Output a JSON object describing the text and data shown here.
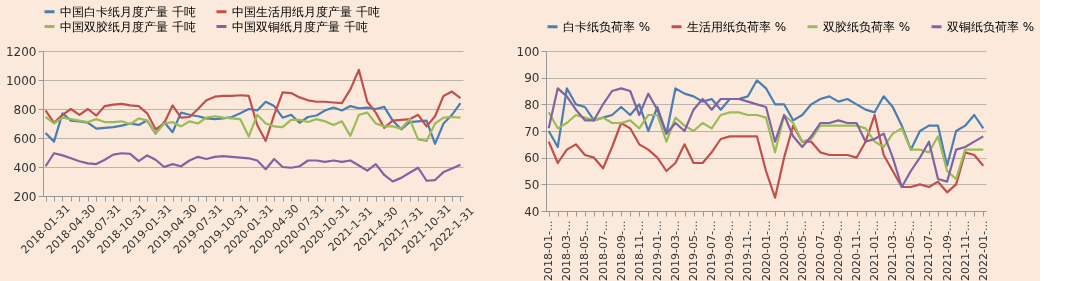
{
  "chart_data": [
    {
      "type": "line",
      "categories": [
        "2018-01-31",
        null,
        null,
        "2018-04-30",
        null,
        null,
        "2018-07-31",
        null,
        null,
        "2018-10-31",
        null,
        null,
        "2019-01-31",
        null,
        null,
        "2019-04-30",
        null,
        null,
        "2019-07-31",
        null,
        null,
        "2019-10-31",
        null,
        null,
        "2020-01-31",
        null,
        null,
        "2020-04-30",
        null,
        null,
        "2020-07-31",
        null,
        null,
        "2020-10-31",
        null,
        null,
        "2021-1-31",
        null,
        null,
        "2021-4-30",
        null,
        null,
        "2021-7-31",
        null,
        null,
        "2021-10-31",
        null,
        null,
        "2022-1-31",
        null
      ],
      "series": [
        {
          "name": "中国白卡纸月度产量 千吨",
          "color": "#4a7eb0",
          "values": [
            635,
            575,
            770,
            720,
            715,
            705,
            665,
            670,
            675,
            685,
            700,
            690,
            720,
            630,
            710,
            640,
            775,
            760,
            750,
            735,
            730,
            735,
            745,
            770,
            800,
            790,
            850,
            820,
            740,
            760,
            705,
            745,
            755,
            790,
            810,
            790,
            820,
            805,
            810,
            800,
            815,
            720,
            660,
            710,
            715,
            720,
            560,
            700,
            760,
            840
          ]
        },
        {
          "name": "中国生活用纸月度产量 千吨",
          "color": "#c0504d",
          "values": [
            790,
            705,
            760,
            800,
            760,
            800,
            755,
            820,
            830,
            835,
            825,
            820,
            770,
            660,
            700,
            825,
            740,
            745,
            800,
            860,
            885,
            890,
            890,
            895,
            890,
            690,
            580,
            760,
            915,
            910,
            880,
            860,
            850,
            850,
            845,
            840,
            935,
            1070,
            850,
            775,
            670,
            720,
            725,
            730,
            760,
            680,
            750,
            890,
            920,
            875
          ]
        },
        {
          "name": "中国双胶纸月度产量 千吨",
          "color": "#9bbb59",
          "values": [
            745,
            700,
            740,
            730,
            720,
            710,
            730,
            710,
            710,
            715,
            695,
            735,
            720,
            630,
            700,
            710,
            680,
            715,
            700,
            740,
            750,
            740,
            735,
            730,
            610,
            760,
            700,
            680,
            675,
            725,
            725,
            710,
            730,
            715,
            690,
            715,
            615,
            760,
            775,
            700,
            680,
            680,
            665,
            730,
            590,
            580,
            700,
            740,
            745,
            740
          ]
        },
        {
          "name": "中国双铜纸月度产量 千吨",
          "color": "#8064a2",
          "values": [
            405,
            495,
            480,
            460,
            440,
            425,
            420,
            450,
            485,
            495,
            490,
            440,
            480,
            450,
            400,
            420,
            405,
            445,
            470,
            455,
            470,
            475,
            470,
            465,
            460,
            445,
            385,
            455,
            400,
            395,
            405,
            445,
            445,
            435,
            445,
            435,
            445,
            410,
            375,
            420,
            345,
            300,
            325,
            360,
            395,
            305,
            310,
            365,
            390,
            415
          ]
        }
      ],
      "ylim": [
        200,
        1200
      ],
      "yticks": [
        200,
        400,
        600,
        800,
        1000,
        1200
      ],
      "grid": "y",
      "legend": "top"
    },
    {
      "type": "line",
      "categories": [
        "2018-01-...",
        null,
        "2018-03-...",
        null,
        "2018-05-...",
        null,
        "2018-07-...",
        null,
        "2018-09-...",
        null,
        "2018-11-...",
        null,
        "2019-01-...",
        null,
        "2019-03-...",
        null,
        "2019-05-...",
        null,
        "2019-07-...",
        null,
        "2019-09-...",
        null,
        "2019-11-...",
        null,
        "2020-01-...",
        null,
        "2020-03-...",
        null,
        "2020-05-...",
        null,
        "2020-07-...",
        null,
        "2020-09-...",
        null,
        "2020-11-...",
        null,
        "2021-01-...",
        null,
        "2021-03-...",
        null,
        "2021-05-...",
        null,
        "2021-07-...",
        null,
        "2021-09-...",
        null,
        "2021-11-...",
        null,
        "2022-01-..."
      ],
      "series": [
        {
          "name": "白卡纸负荷率 %",
          "color": "#4a7eb0",
          "values": [
            70,
            64,
            86,
            80,
            79,
            74,
            75,
            76,
            79,
            76,
            80,
            70,
            79,
            69,
            86,
            84,
            83,
            81,
            82,
            78,
            82,
            82,
            83,
            89,
            86,
            80,
            80,
            74,
            76,
            80,
            82,
            83,
            81,
            82,
            80,
            78,
            77,
            83,
            79,
            72,
            63,
            70,
            72,
            72,
            57,
            70,
            72,
            76,
            71
          ]
        },
        {
          "name": "生活用纸负荷率 %",
          "color": "#c0504d",
          "values": [
            66,
            58,
            63,
            65,
            61,
            60,
            56,
            64,
            73,
            71,
            65,
            63,
            60,
            55,
            58,
            65,
            58,
            58,
            62,
            67,
            68,
            68,
            68,
            68,
            55,
            45,
            60,
            72,
            66,
            66,
            62,
            61,
            61,
            61,
            60,
            66,
            76,
            61,
            55,
            49,
            49,
            50,
            49,
            51,
            47,
            50,
            62,
            61,
            57
          ]
        },
        {
          "name": "双胶纸负荷率 %",
          "color": "#9bbb59",
          "values": [
            77,
            71,
            73,
            76,
            75,
            74,
            75,
            73,
            73,
            74,
            71,
            76,
            76,
            66,
            75,
            72,
            70,
            73,
            71,
            76,
            77,
            77,
            76,
            76,
            75,
            62,
            76,
            73,
            66,
            67,
            72,
            72,
            72,
            72,
            72,
            71,
            66,
            64,
            69,
            71,
            63,
            63,
            62,
            68,
            55,
            52,
            63,
            63,
            63
          ]
        },
        {
          "name": "双铜纸负荷率 %",
          "color": "#8064a2",
          "values": [
            71,
            86,
            83,
            78,
            74,
            74,
            80,
            85,
            86,
            85,
            76,
            84,
            78,
            69,
            73,
            70,
            78,
            82,
            78,
            82,
            82,
            82,
            81,
            80,
            79,
            66,
            76,
            68,
            64,
            68,
            73,
            73,
            74,
            73,
            73,
            66,
            67,
            69,
            60,
            49,
            55,
            60,
            66,
            52,
            51,
            63,
            64,
            66,
            68
          ]
        }
      ],
      "ylim": [
        40,
        100
      ],
      "yticks": [
        40,
        50,
        60,
        70,
        80,
        90,
        100
      ],
      "grid": "y",
      "legend": "top"
    }
  ]
}
